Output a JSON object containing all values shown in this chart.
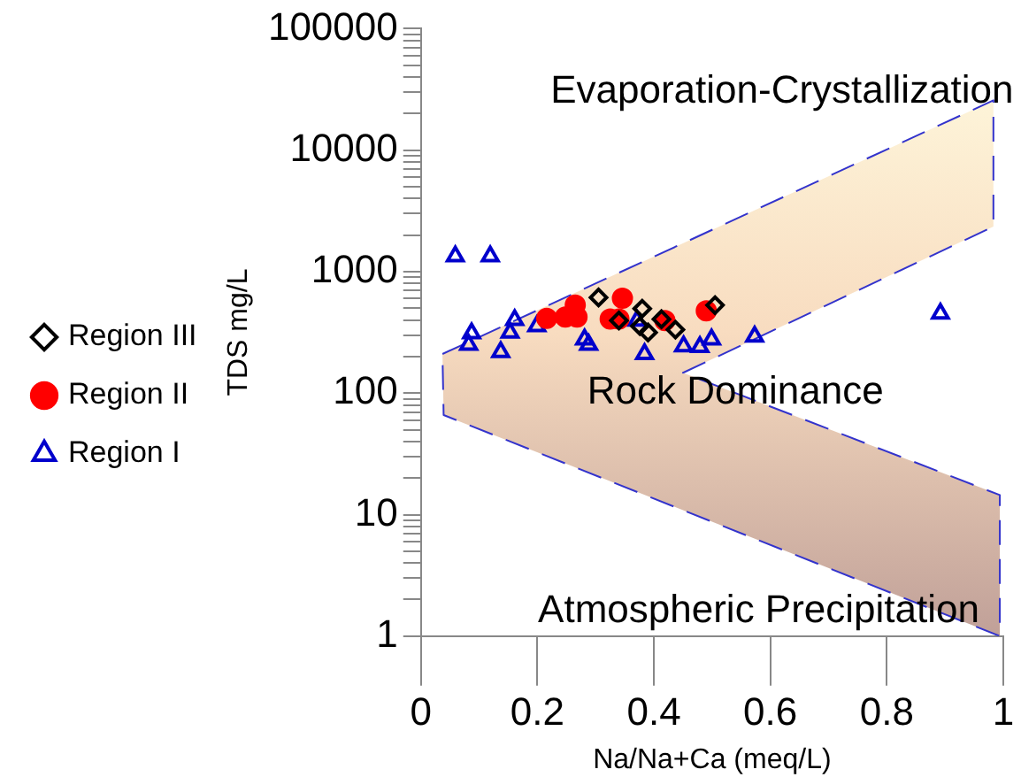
{
  "chart_data": {
    "type": "scatter",
    "xlabel": "Na/Na+Ca (meq/L)",
    "ylabel": "TDS mg/L",
    "annotations": [
      "Evaporation-Crystallization",
      "Rock Dominance",
      "Atmospheric Precipitation"
    ],
    "log": "y",
    "xlim": [
      0,
      1
    ],
    "xticks": [
      0,
      0.2,
      0.4,
      0.6,
      0.8,
      1
    ],
    "ylim": [
      1,
      100000
    ],
    "yticks": [
      1,
      {
        "value": 2,
        "label": null
      },
      {
        "value": 3,
        "label": null
      },
      {
        "value": 4,
        "label": null
      },
      {
        "value": 5,
        "label": null
      },
      {
        "value": 6,
        "label": null
      },
      {
        "value": 7,
        "label": null
      },
      {
        "value": 8,
        "label": null
      },
      {
        "value": 9,
        "label": null
      },
      10,
      {
        "value": 20,
        "label": null
      },
      {
        "value": 30,
        "label": null
      },
      {
        "value": 40,
        "label": null
      },
      {
        "value": 50,
        "label": null
      },
      {
        "value": 60,
        "label": null
      },
      {
        "value": 70,
        "label": null
      },
      {
        "value": 80,
        "label": null
      },
      {
        "value": 90,
        "label": null
      },
      100,
      {
        "value": 200,
        "label": null
      },
      {
        "value": 300,
        "label": null
      },
      {
        "value": 400,
        "label": null
      },
      {
        "value": 500,
        "label": null
      },
      {
        "value": 600,
        "label": null
      },
      {
        "value": 700,
        "label": null
      },
      {
        "value": 800,
        "label": null
      },
      {
        "value": 900,
        "label": null
      },
      1000,
      {
        "value": 2000,
        "label": null
      },
      {
        "value": 3000,
        "label": null
      },
      {
        "value": 4000,
        "label": null
      },
      {
        "value": 5000,
        "label": null
      },
      {
        "value": 6000,
        "label": null
      },
      {
        "value": 7000,
        "label": null
      },
      {
        "value": 8000,
        "label": null
      },
      {
        "value": 9000,
        "label": null
      },
      10000,
      {
        "value": 20000,
        "label": null
      },
      {
        "value": 30000,
        "label": null
      },
      {
        "value": 40000,
        "label": null
      },
      {
        "value": 50000,
        "label": null
      },
      {
        "value": 60000,
        "label": null
      },
      {
        "value": 70000,
        "label": null
      },
      {
        "value": 80000,
        "label": null
      },
      {
        "value": 90000,
        "label": null
      },
      100000
    ],
    "grid": false,
    "legend": "left",
    "series": [
      {
        "type": "area",
        "line_style": "dashed",
        "marker": "none",
        "color": "#3333cc",
        "x": [
          0.037,
          0.983,
          0.983,
          0.45,
          0.994,
          0.994,
          0.039,
          0.037
        ],
        "values": [
          210,
          25700,
          2350,
          147,
          14.5,
          1,
          66,
          210
        ]
      },
      {
        "name": "Region I",
        "marker": "triangle",
        "color": "#0000cc",
        "x": [
          0.059,
          0.119,
          0.087,
          0.082,
          0.137,
          0.161,
          0.153,
          0.199,
          0.281,
          0.288,
          0.371,
          0.384,
          0.451,
          0.479,
          0.499,
          0.573,
          0.892
        ],
        "values": [
          1340,
          1340,
          312,
          250,
          218,
          400,
          316,
          356,
          277,
          250,
          396,
          210,
          243,
          240,
          277,
          292,
          452
        ]
      },
      {
        "name": "Region II",
        "marker": "circle",
        "color": "#ff0000",
        "x": [
          0.216,
          0.248,
          0.265,
          0.268,
          0.325,
          0.346,
          0.34,
          0.419,
          0.49
        ],
        "values": [
          412,
          423,
          530,
          423,
          407,
          605,
          407,
          396,
          476
        ]
      },
      {
        "name": "Region III",
        "marker": "diamond",
        "color": "#000000",
        "x": [
          0.305,
          0.34,
          0.38,
          0.376,
          0.39,
          0.413,
          0.437,
          0.505
        ],
        "values": [
          613,
          396,
          496,
          356,
          316,
          406,
          333,
          530
        ]
      }
    ]
  }
}
